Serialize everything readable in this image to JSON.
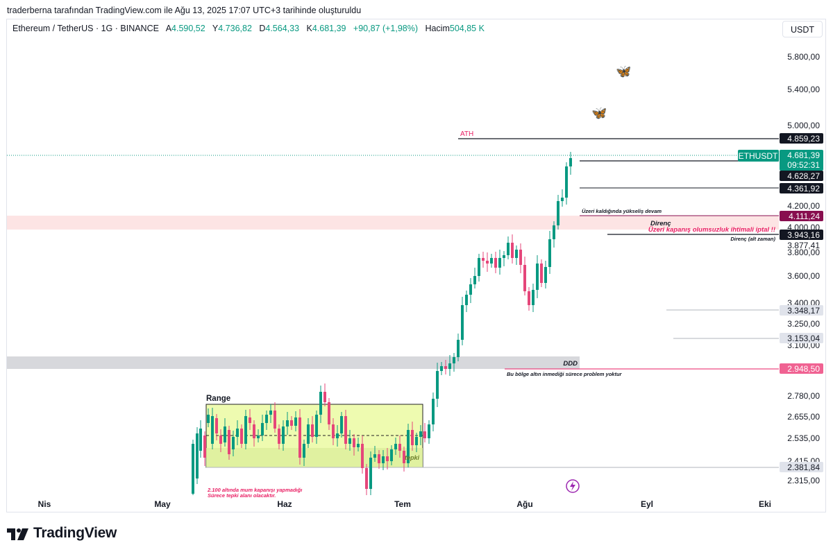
{
  "attribution": "traderberna tarafından TradingView.com ile Ağu 13, 2025 17:07 UTC+3 tarihinde oluşturuldu",
  "legend": {
    "symbol": "Ethereum / TetherUS · 1G · BINANCE",
    "open_label": "A",
    "open": "4.590,52",
    "high_label": "Y",
    "high": "4.736,82",
    "low_label": "D",
    "low": "4.564,33",
    "close_label": "K",
    "close": "4.681,39",
    "change": "+90,87 (+1,98%)",
    "volume_label": "Hacim",
    "volume": "504,85",
    "volume_unit": "K"
  },
  "currency_button": "USDT",
  "price_axis": {
    "ticks": [
      "5.800,00",
      "5.400,00",
      "5.000,00",
      "4.200,00",
      "4.000,00",
      "3.800,00",
      "3.600,00",
      "3.400,00",
      "3.250,00",
      "3.100,00",
      "2.780,00",
      "2.655,00",
      "2.535,00",
      "2.415,00",
      "2.315,00"
    ]
  },
  "price_tags": {
    "ath": "4.859,23",
    "last": "4.681,39",
    "countdown": "09:52:31",
    "l1": "4.628,27",
    "l2": "4.361,92",
    "resistance": "4.111,24",
    "sub_res": "3.943,16",
    "plain": "3.877,41",
    "s1": "3.348,17",
    "s2": "3.153,04",
    "ddd": "2.948,50",
    "range_low": "2.381,84"
  },
  "symbol_tag": "ETHUSDT",
  "time_axis": [
    "Nis",
    "May",
    "Haz",
    "Tem",
    "Ağu",
    "Eyl",
    "Eki"
  ],
  "annotations": {
    "ath": "ATH",
    "res_note": "Üzeri kaldığında yükseliş devam",
    "direnc": "Direnç",
    "iptal": "Üzeri kapanış olumsuzluk ihtimali iptal !!",
    "alt_zaman": "Direnç (alt zaman)",
    "ddd": "DDD",
    "ddd_note": "Bu bölge altın inmediği sürece problem yoktur",
    "range": "Range",
    "tepki": "tepki",
    "note1": "2.100 altında mum kapanışı yapmadığı",
    "note2": "Sürece tepki alanı olacaktır."
  },
  "brand": "TradingView",
  "icons": [
    "butterfly-icon",
    "lightning-icon",
    "tradingview-logo-icon"
  ],
  "colors": {
    "up": "#089981",
    "down": "#e5467a",
    "accent_pink": "#e91e63",
    "range_fill": "#eefbb0"
  }
}
